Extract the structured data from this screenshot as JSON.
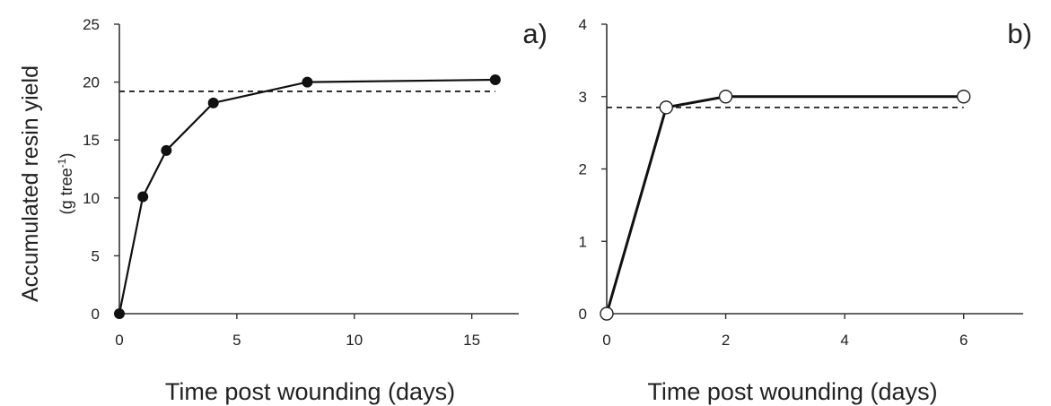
{
  "y_axis_title": {
    "line1": "Accumulated resin yield",
    "line2_prefix": "(g tree",
    "line2_sup": "-1",
    "line2_suffix": ")"
  },
  "chart_data": [
    {
      "type": "line",
      "panel_label": "a)",
      "xlabel": "Time post wounding (days)",
      "xlim": [
        0,
        17
      ],
      "ylim": [
        0,
        25
      ],
      "xticks": [
        0,
        5,
        10,
        15
      ],
      "yticks": [
        0,
        5,
        10,
        15,
        20,
        25
      ],
      "grid": false,
      "marker": "filled-circle",
      "series": [
        {
          "x": [
            0,
            1,
            2,
            4,
            8,
            16
          ],
          "y": [
            0,
            10.1,
            14.1,
            18.2,
            20.0,
            20.2
          ]
        }
      ],
      "reference_line": {
        "y": 19.2,
        "x_from": 0,
        "x_to": 16,
        "style": "dashed"
      }
    },
    {
      "type": "line",
      "panel_label": "b)",
      "xlabel": "Time post wounding (days)",
      "xlim": [
        0,
        7
      ],
      "ylim": [
        0,
        4
      ],
      "xticks": [
        0,
        2,
        4,
        6
      ],
      "yticks": [
        0,
        1,
        2,
        3,
        4
      ],
      "grid": false,
      "marker": "open-circle",
      "series": [
        {
          "x": [
            0,
            1,
            2,
            6
          ],
          "y": [
            0,
            2.85,
            3.0,
            3.0
          ]
        }
      ],
      "reference_line": {
        "y": 2.85,
        "x_from": 0,
        "x_to": 6,
        "style": "dashed"
      }
    }
  ]
}
